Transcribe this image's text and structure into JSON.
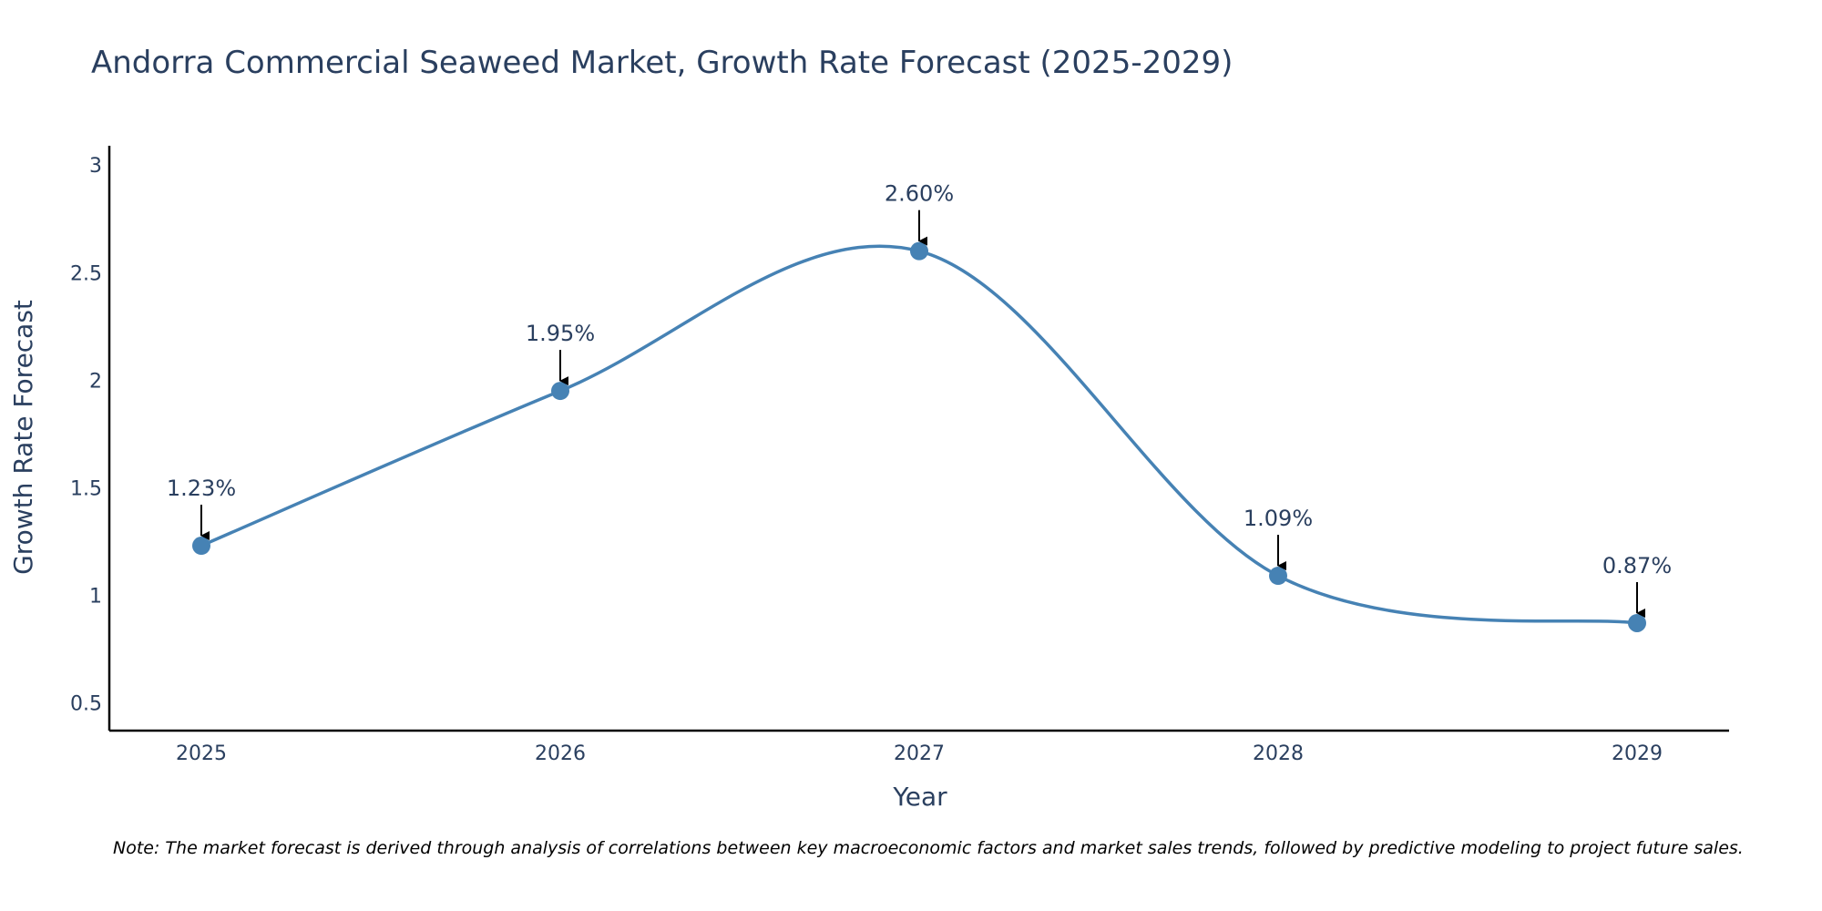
{
  "chart_data": {
    "type": "line",
    "title": "Andorra Commercial Seaweed Market, Growth Rate Forecast (2025-2029)",
    "xlabel": "Year",
    "ylabel": "Growth Rate Forecast",
    "categories": [
      "2025",
      "2026",
      "2027",
      "2028",
      "2029"
    ],
    "x": [
      2025,
      2026,
      2027,
      2028,
      2029
    ],
    "values": [
      1.23,
      1.95,
      2.6,
      1.09,
      0.87
    ],
    "data_labels": [
      "1.23%",
      "1.95%",
      "2.60%",
      "1.09%",
      "0.87%"
    ],
    "y_ticks": [
      0.5,
      1,
      1.5,
      2,
      2.5,
      3
    ],
    "y_tick_labels": [
      "0.5",
      "1",
      "1.5",
      "2",
      "2.5",
      "3"
    ],
    "ylim": [
      0.37,
      3.09
    ],
    "line_shape": "spline",
    "grid": false,
    "line_color": "#4682b4",
    "marker_color": "#4682b4",
    "arrow_color": "#000000"
  },
  "note": "Note: The market forecast is derived through analysis of correlations between key macroeconomic factors and market sales trends, followed by predictive modeling to project future sales."
}
